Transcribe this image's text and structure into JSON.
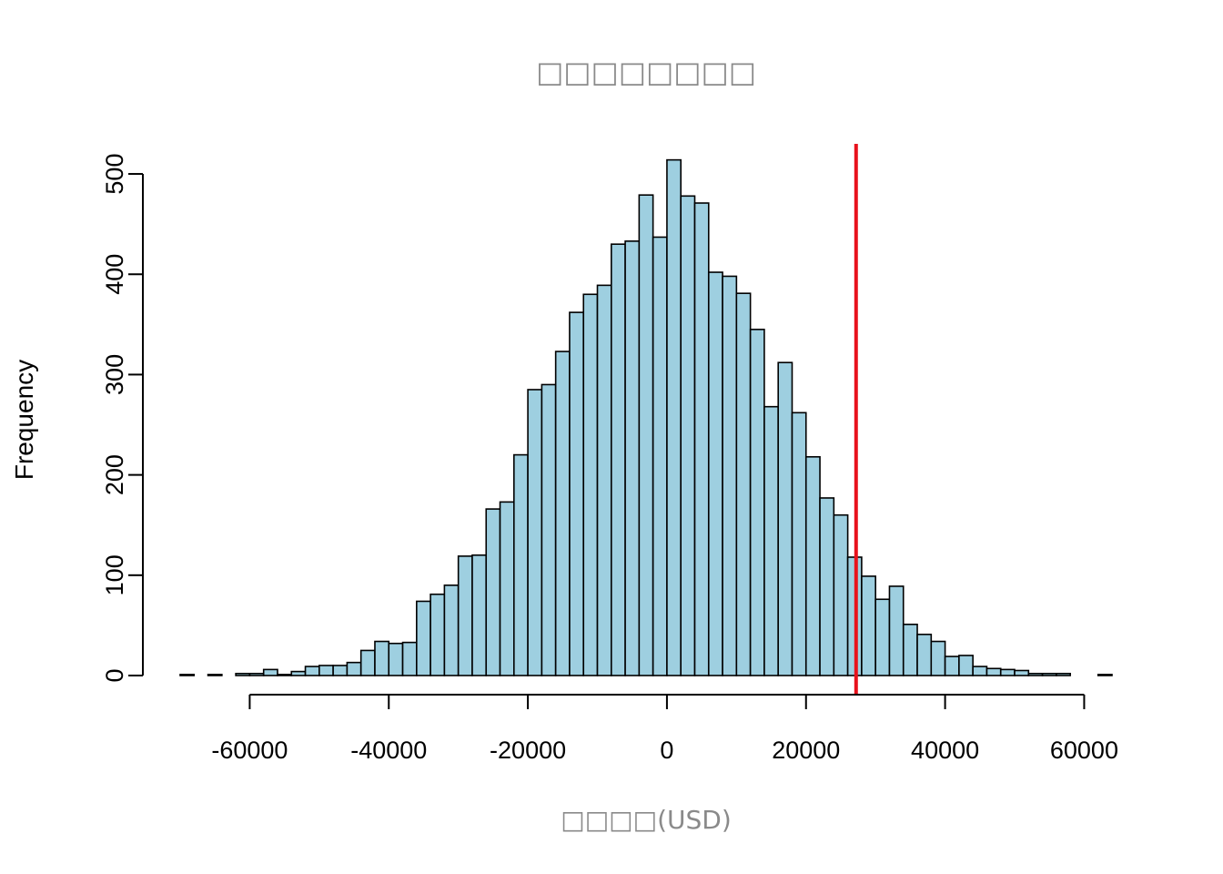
{
  "chart_data": {
    "type": "bar",
    "title": "□□□□□□□□",
    "xlabel": "□□□□(USD)",
    "ylabel": "Frequency",
    "bin_start": -70000,
    "bin_width": 2000,
    "values": [
      1,
      0,
      1,
      0,
      2,
      2,
      6,
      1,
      4,
      9,
      10,
      10,
      13,
      25,
      34,
      32,
      33,
      74,
      81,
      90,
      119,
      120,
      166,
      173,
      220,
      285,
      290,
      323,
      362,
      380,
      389,
      430,
      433,
      479,
      437,
      514,
      478,
      471,
      402,
      398,
      381,
      345,
      268,
      312,
      262,
      218,
      177,
      160,
      118,
      99,
      76,
      89,
      51,
      41,
      34,
      19,
      20,
      9,
      7,
      6,
      5,
      2,
      2,
      2,
      0,
      0,
      1
    ],
    "xlim": [
      -70000,
      64000
    ],
    "ylim": [
      0,
      530
    ],
    "xticks": [
      -60000,
      -40000,
      -20000,
      0,
      20000,
      40000,
      60000
    ],
    "xtick_labels": [
      "-60000",
      "-40000",
      "-20000",
      "0",
      "20000",
      "40000",
      "60000"
    ],
    "yticks": [
      0,
      100,
      200,
      300,
      400,
      500
    ],
    "ytick_labels": [
      "0",
      "100",
      "200",
      "300",
      "400",
      "500"
    ],
    "vline": {
      "x": 27200,
      "color": "#e8121c"
    },
    "bar_color": "#9ecfe0",
    "grid": false,
    "legend": "none"
  }
}
